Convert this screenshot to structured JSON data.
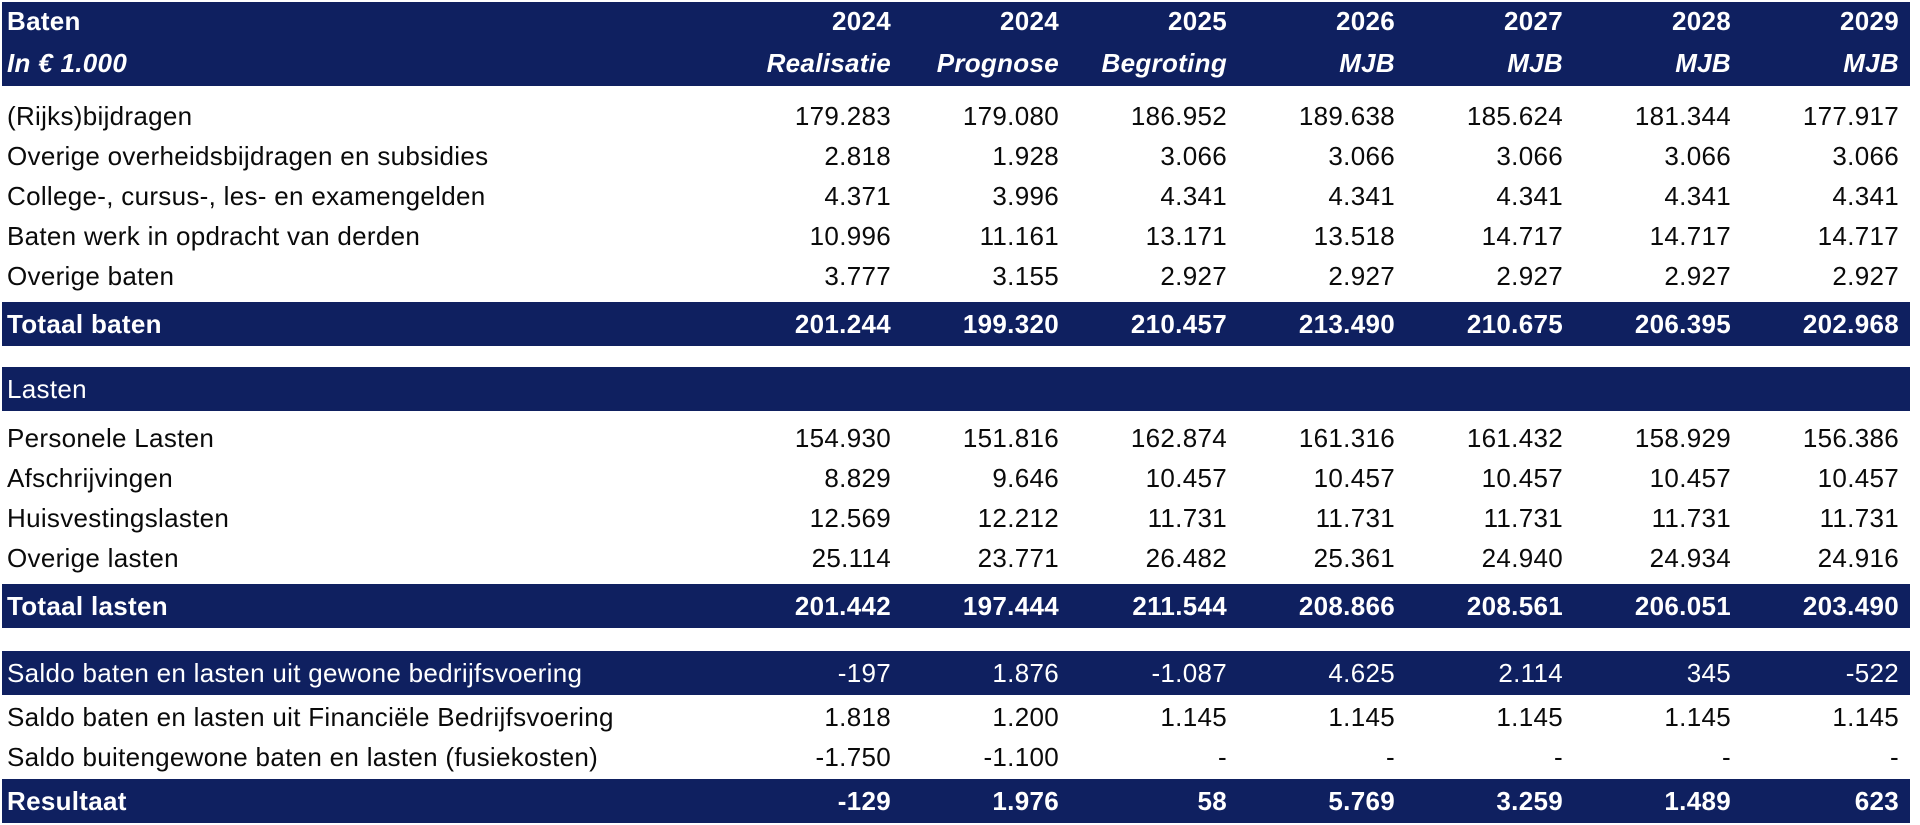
{
  "header": {
    "title": "Baten",
    "unit": "In € 1.000",
    "years": [
      "2024",
      "2024",
      "2025",
      "2026",
      "2027",
      "2028",
      "2029"
    ],
    "types": [
      "Realisatie",
      "Prognose",
      "Begroting",
      "MJB",
      "MJB",
      "MJB",
      "MJB"
    ]
  },
  "baten": {
    "rows": [
      {
        "label": "(Rijks)bijdragen",
        "values": [
          "179.283",
          "179.080",
          "186.952",
          "189.638",
          "185.624",
          "181.344",
          "177.917"
        ]
      },
      {
        "label": "Overige overheidsbijdragen en subsidies",
        "values": [
          "2.818",
          "1.928",
          "3.066",
          "3.066",
          "3.066",
          "3.066",
          "3.066"
        ]
      },
      {
        "label": "College-, cursus-, les- en examengelden",
        "values": [
          "4.371",
          "3.996",
          "4.341",
          "4.341",
          "4.341",
          "4.341",
          "4.341"
        ]
      },
      {
        "label": "Baten werk in opdracht van derden",
        "values": [
          "10.996",
          "11.161",
          "13.171",
          "13.518",
          "14.717",
          "14.717",
          "14.717"
        ]
      },
      {
        "label": "Overige baten",
        "values": [
          "3.777",
          "3.155",
          "2.927",
          "2.927",
          "2.927",
          "2.927",
          "2.927"
        ]
      }
    ],
    "total": {
      "label": "Totaal baten",
      "values": [
        "201.244",
        "199.320",
        "210.457",
        "213.490",
        "210.675",
        "206.395",
        "202.968"
      ]
    }
  },
  "lasten": {
    "title": "Lasten",
    "rows": [
      {
        "label": "Personele Lasten",
        "values": [
          "154.930",
          "151.816",
          "162.874",
          "161.316",
          "161.432",
          "158.929",
          "156.386"
        ]
      },
      {
        "label": "Afschrijvingen",
        "values": [
          "8.829",
          "9.646",
          "10.457",
          "10.457",
          "10.457",
          "10.457",
          "10.457"
        ]
      },
      {
        "label": "Huisvestingslasten",
        "values": [
          "12.569",
          "12.212",
          "11.731",
          "11.731",
          "11.731",
          "11.731",
          "11.731"
        ]
      },
      {
        "label": "Overige lasten",
        "values": [
          "25.114",
          "23.771",
          "26.482",
          "25.361",
          "24.940",
          "24.934",
          "24.916"
        ]
      }
    ],
    "total": {
      "label": "Totaal lasten",
      "values": [
        "201.442",
        "197.444",
        "211.544",
        "208.866",
        "208.561",
        "206.051",
        "203.490"
      ]
    }
  },
  "saldo": {
    "rows": [
      {
        "label": "Saldo baten en lasten uit gewone bedrijfsvoering",
        "values": [
          "-197",
          "1.876",
          "-1.087",
          "4.625",
          "2.114",
          "345",
          "-522"
        ]
      },
      {
        "label": "Saldo baten en lasten uit Financiële Bedrijfsvoering",
        "values": [
          "1.818",
          "1.200",
          "1.145",
          "1.145",
          "1.145",
          "1.145",
          "1.145"
        ]
      },
      {
        "label": "Saldo buitengewone baten en lasten (fusiekosten)",
        "values": [
          "-1.750",
          "-1.100",
          "-",
          "-",
          "-",
          "-",
          "-"
        ]
      }
    ],
    "result": {
      "label": "Resultaat",
      "values": [
        "-129",
        "1.976",
        "58",
        "5.769",
        "3.259",
        "1.489",
        "623"
      ]
    }
  },
  "colors": {
    "header_bg": "#0f2060",
    "header_text": "#ffffff"
  }
}
